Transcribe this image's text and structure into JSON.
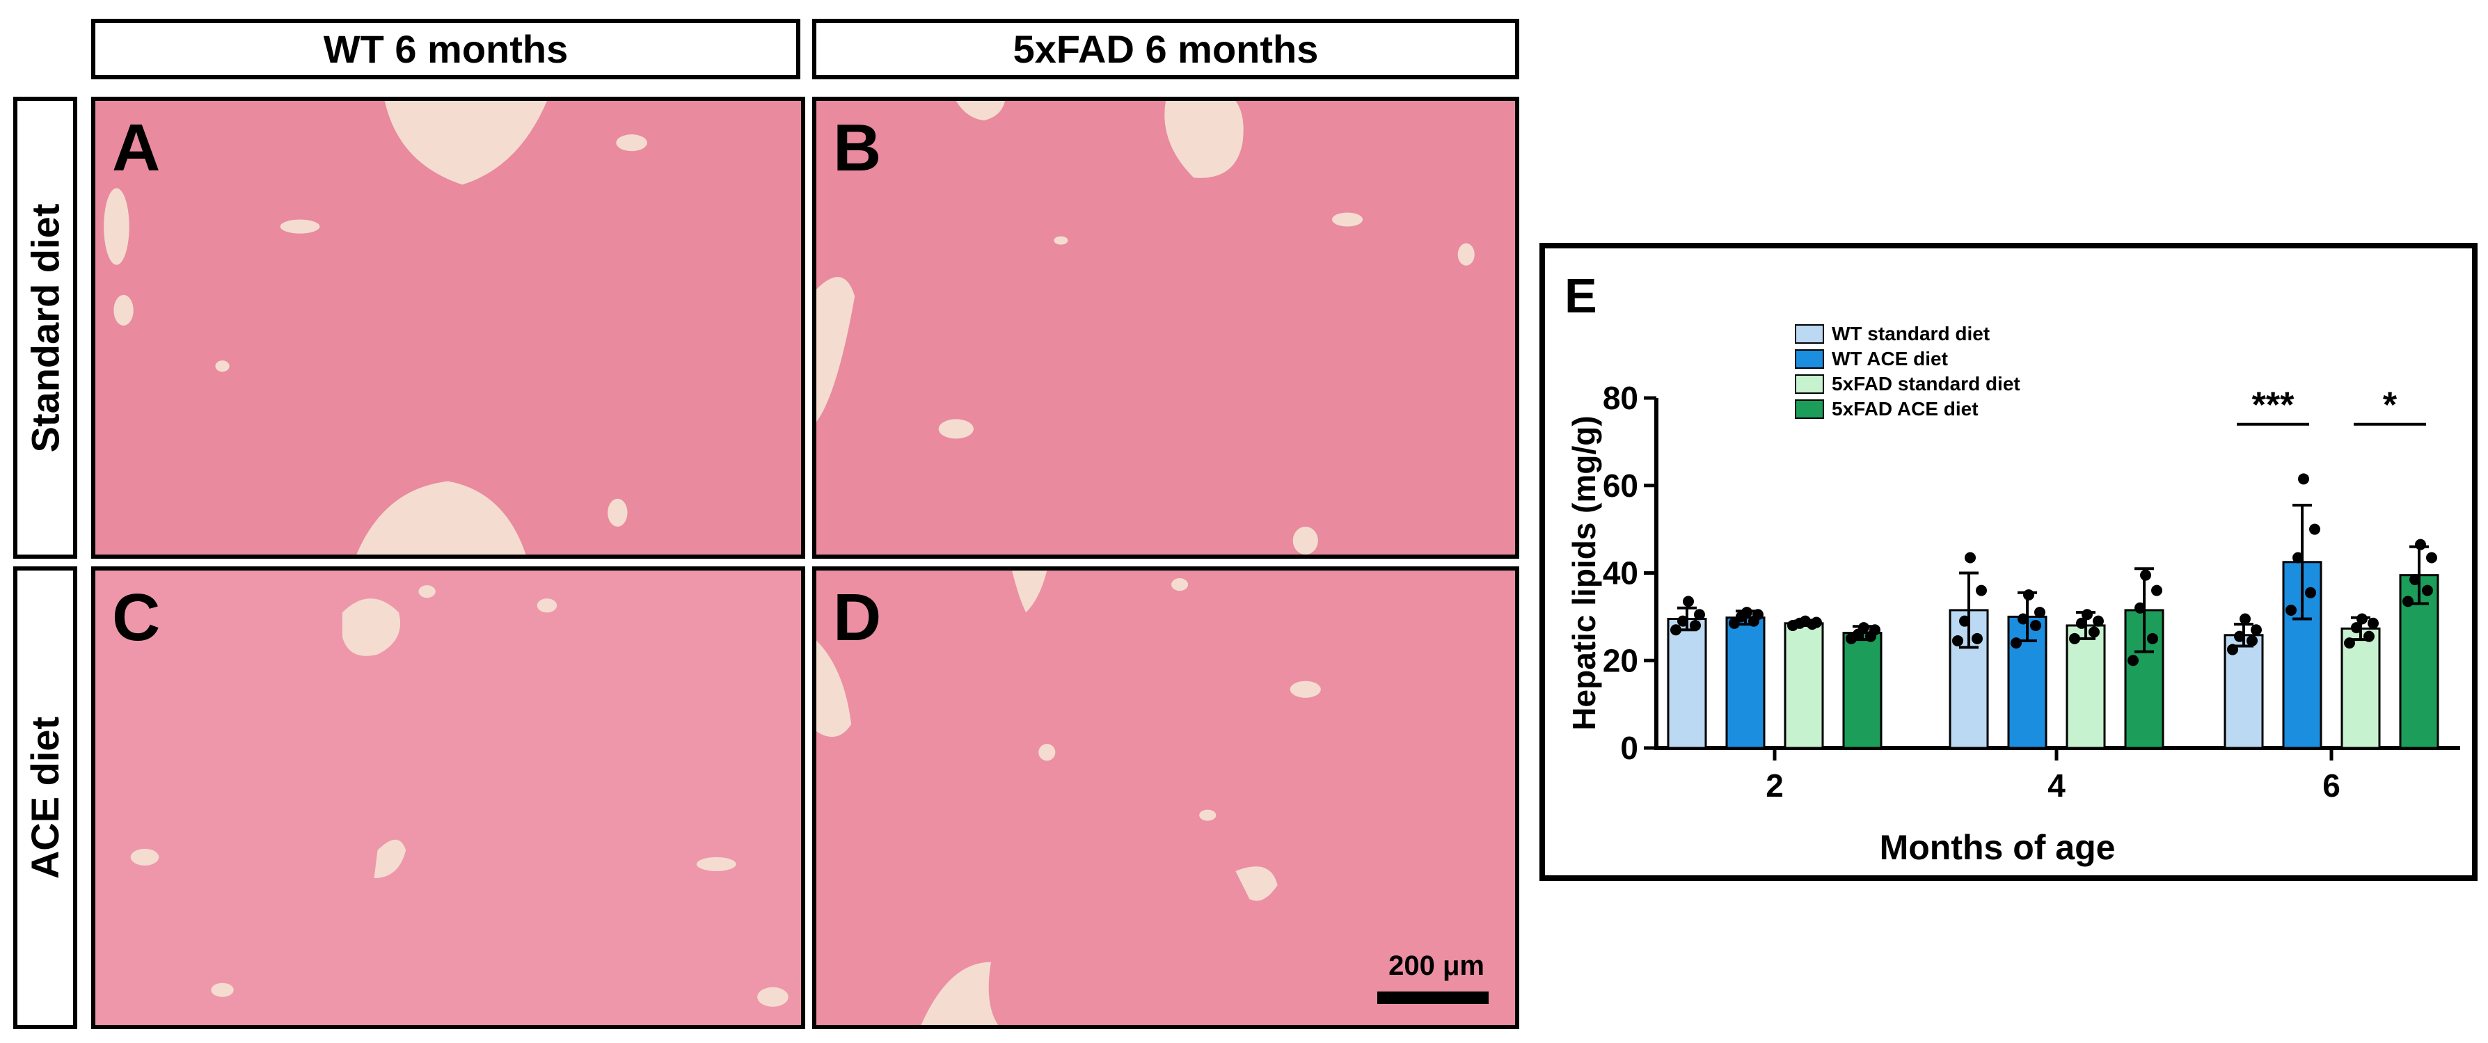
{
  "columns": [
    "WT 6 months",
    "5xFAD 6 months"
  ],
  "rows": [
    "Standard diet",
    "ACE diet"
  ],
  "panels": [
    "A",
    "B",
    "C",
    "D"
  ],
  "scale_bar": "200 μm",
  "colors": {
    "tissue": "#e98a9e",
    "vessel": "#f4ddd0",
    "wt_standard": "#bcd9f3",
    "wt_ace": "#1c8ee0",
    "fad_standard": "#c7f2cf",
    "fad_ace": "#1c9e5a"
  },
  "chart_data": {
    "type": "bar",
    "panel_letter": "E",
    "xlabel": "Months of age",
    "ylabel": "Hepatic lipids (mg/g)",
    "categories": [
      "2",
      "4",
      "6"
    ],
    "ylim": [
      0,
      80
    ],
    "yticks": [
      "0",
      "20",
      "40",
      "60",
      "80"
    ],
    "legend_position": "top-left",
    "series": [
      {
        "name": "WT standard diet",
        "color": "#bcd9f3",
        "values": [
          29.5,
          31.5,
          25.8
        ],
        "errors": [
          2.5,
          8.5,
          2.5
        ],
        "points": [
          [
            27,
            28,
            29,
            30.5,
            33.5
          ],
          [
            24.5,
            25,
            29,
            36,
            43.5
          ],
          [
            22.5,
            24.5,
            25.5,
            27,
            29.5
          ]
        ]
      },
      {
        "name": "WT ACE diet",
        "color": "#1c8ee0",
        "values": [
          29.8,
          30,
          42.5
        ],
        "errors": [
          1.5,
          5.5,
          13
        ],
        "points": [
          [
            28.5,
            29,
            30,
            30.5,
            31
          ],
          [
            24,
            28,
            29.5,
            31,
            35
          ],
          [
            31.5,
            35.5,
            43.5,
            50,
            61.5
          ]
        ]
      },
      {
        "name": "5xFAD standard diet",
        "color": "#c7f2cf",
        "values": [
          28.5,
          28,
          27.3
        ],
        "errors": [
          0.5,
          3,
          2.5
        ],
        "points": [
          [
            28,
            28.3,
            28.5,
            28.7,
            29
          ],
          [
            25,
            26.5,
            28.5,
            29,
            30.5
          ],
          [
            24,
            25.5,
            27.5,
            28.5,
            29.5
          ]
        ]
      },
      {
        "name": "5xFAD ACE diet",
        "color": "#1c9e5a",
        "values": [
          26.3,
          31.5,
          39.5
        ],
        "errors": [
          1.5,
          9.5,
          6.5
        ],
        "points": [
          [
            25,
            25.5,
            26,
            27,
            27.5
          ],
          [
            20,
            25,
            32,
            36,
            39.5
          ],
          [
            33.5,
            36,
            38.5,
            43.5,
            46.5
          ]
        ]
      }
    ],
    "significance": [
      {
        "label": "***",
        "category": "6",
        "between": [
          "WT standard diet",
          "WT ACE diet"
        ]
      },
      {
        "label": "*",
        "category": "6",
        "between": [
          "5xFAD standard diet",
          "5xFAD ACE diet"
        ]
      }
    ]
  }
}
